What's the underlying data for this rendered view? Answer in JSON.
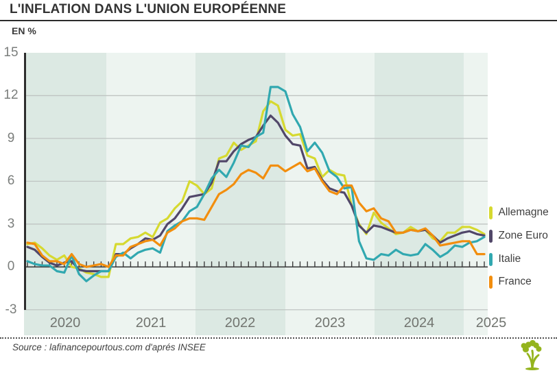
{
  "header": {
    "title": "L'INFLATION DANS L'UNION EUROPÉENNE",
    "unit_label": "EN %"
  },
  "legend": {
    "items": [
      {
        "label": "Allemagne",
        "color": "#d6d930"
      },
      {
        "label": "Zone Euro",
        "color": "#514769"
      },
      {
        "label": "Italie",
        "color": "#31a8b0"
      },
      {
        "label": "France",
        "color": "#f28e0e"
      }
    ]
  },
  "footer": {
    "source_text": "Source : lafinancepourtous.com d'aprés INSEE",
    "logo_icon": "tree-logo"
  },
  "colors": {
    "band_dark": "#dce9e3",
    "band_light": "#edf4f0",
    "grid": "#bfc4c2",
    "axis": "#3c3c3c",
    "axis_left": "#2d2d2d",
    "logo_green": "#94b41d"
  },
  "chart_data": {
    "type": "line",
    "title": "L'INFLATION DANS L'UNION EUROPÉENNE",
    "ylabel": "EN %",
    "ylim": [
      -3,
      15
    ],
    "y_ticks": [
      15,
      12,
      9,
      6,
      3,
      0,
      -3
    ],
    "y_tick_labels": [
      "15",
      "12",
      "9",
      "6",
      "3",
      "0",
      "-3"
    ],
    "x_year_labels": [
      "2020",
      "2021",
      "2022",
      "2023",
      "2024",
      "2025"
    ],
    "x_start": "2020-01",
    "x_end": "2025-03",
    "frequency": "monthly",
    "grid": "horizontal gridlines at 3,6,9,12; alternating vertical year bands",
    "legend_position": "right",
    "series": [
      {
        "name": "Allemagne",
        "color": "#d6d930",
        "values": [
          1.6,
          1.7,
          1.3,
          0.8,
          0.5,
          0.8,
          0.0,
          -0.1,
          -0.4,
          -0.5,
          -0.7,
          -0.7,
          1.6,
          1.6,
          2.0,
          2.1,
          2.4,
          2.1,
          3.1,
          3.4,
          4.1,
          4.6,
          6.0,
          5.7,
          5.1,
          5.5,
          7.6,
          7.8,
          8.7,
          8.2,
          8.5,
          8.8,
          10.9,
          11.6,
          11.3,
          9.6,
          9.2,
          9.3,
          7.8,
          7.6,
          6.3,
          6.8,
          6.5,
          6.4,
          4.3,
          3.0,
          2.3,
          3.8,
          3.1,
          2.7,
          2.3,
          2.4,
          2.8,
          2.5,
          2.6,
          2.0,
          1.8,
          2.4,
          2.4,
          2.8,
          2.8,
          2.6,
          2.3
        ]
      },
      {
        "name": "Zone Euro",
        "color": "#514769",
        "values": [
          1.4,
          1.2,
          0.7,
          0.3,
          0.1,
          0.3,
          0.4,
          -0.2,
          -0.3,
          -0.3,
          -0.3,
          -0.3,
          0.9,
          0.9,
          1.3,
          1.6,
          2.0,
          1.9,
          2.2,
          3.0,
          3.4,
          4.1,
          4.9,
          5.0,
          5.1,
          5.9,
          7.4,
          7.4,
          8.1,
          8.6,
          8.9,
          9.1,
          9.9,
          10.6,
          10.1,
          9.2,
          8.6,
          8.5,
          6.9,
          7.0,
          6.1,
          5.5,
          5.3,
          5.2,
          4.3,
          2.9,
          2.4,
          2.9,
          2.8,
          2.6,
          2.4,
          2.4,
          2.6,
          2.5,
          2.6,
          2.2,
          1.7,
          2.0,
          2.2,
          2.4,
          2.5,
          2.3,
          2.2
        ]
      },
      {
        "name": "Italie",
        "color": "#31a8b0",
        "values": [
          0.4,
          0.2,
          0.1,
          0.1,
          -0.3,
          -0.4,
          0.8,
          -0.5,
          -1.0,
          -0.6,
          -0.3,
          -0.3,
          0.7,
          1.0,
          0.6,
          1.0,
          1.2,
          1.3,
          1.0,
          2.5,
          2.9,
          3.2,
          3.9,
          4.2,
          5.1,
          6.2,
          6.8,
          6.3,
          7.3,
          8.5,
          8.4,
          9.1,
          9.4,
          12.6,
          12.6,
          12.3,
          10.7,
          9.8,
          8.1,
          8.7,
          8.0,
          6.7,
          6.3,
          5.5,
          5.6,
          1.8,
          0.6,
          0.5,
          0.9,
          0.8,
          1.2,
          0.9,
          0.8,
          0.9,
          1.6,
          1.2,
          0.7,
          1.0,
          1.5,
          1.4,
          1.7,
          1.8,
          2.1
        ]
      },
      {
        "name": "France",
        "color": "#f28e0e",
        "values": [
          1.7,
          1.6,
          0.8,
          0.4,
          0.4,
          0.2,
          0.9,
          0.2,
          0.0,
          0.1,
          0.2,
          0.0,
          0.8,
          0.8,
          1.4,
          1.6,
          1.8,
          1.9,
          1.5,
          2.4,
          2.7,
          3.2,
          3.4,
          3.4,
          3.3,
          4.2,
          5.1,
          5.4,
          5.8,
          6.5,
          6.8,
          6.6,
          6.2,
          7.1,
          7.1,
          6.7,
          7.0,
          7.3,
          6.7,
          6.9,
          6.0,
          5.3,
          5.1,
          5.7,
          5.7,
          4.5,
          3.9,
          4.1,
          3.4,
          3.2,
          2.4,
          2.4,
          2.6,
          2.5,
          2.7,
          2.2,
          1.5,
          1.6,
          1.7,
          1.8,
          1.8,
          0.9,
          0.9
        ]
      }
    ]
  }
}
